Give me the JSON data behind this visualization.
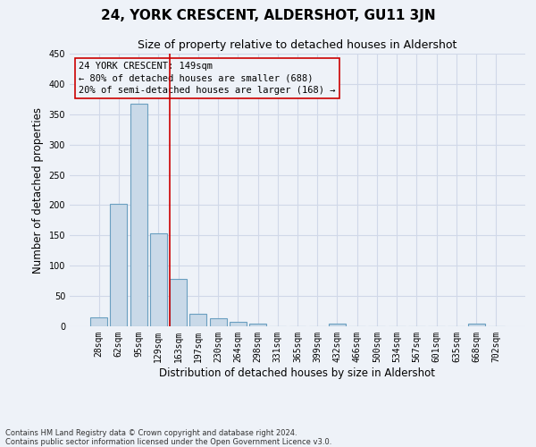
{
  "title": "24, YORK CRESCENT, ALDERSHOT, GU11 3JN",
  "subtitle": "Size of property relative to detached houses in Aldershot",
  "xlabel": "Distribution of detached houses by size in Aldershot",
  "ylabel": "Number of detached properties",
  "bar_labels": [
    "28sqm",
    "62sqm",
    "95sqm",
    "129sqm",
    "163sqm",
    "197sqm",
    "230sqm",
    "264sqm",
    "298sqm",
    "331sqm",
    "365sqm",
    "399sqm",
    "432sqm",
    "466sqm",
    "500sqm",
    "534sqm",
    "567sqm",
    "601sqm",
    "635sqm",
    "668sqm",
    "702sqm"
  ],
  "bar_values": [
    15,
    202,
    368,
    153,
    78,
    20,
    14,
    7,
    5,
    0,
    0,
    0,
    4,
    0,
    0,
    0,
    0,
    0,
    0,
    4,
    0
  ],
  "bar_color": "#c9d9e8",
  "bar_edge_color": "#6a9fc0",
  "bar_edge_width": 0.8,
  "grid_color": "#d0d8e8",
  "background_color": "#eef2f8",
  "ylim": [
    0,
    450
  ],
  "yticks": [
    0,
    50,
    100,
    150,
    200,
    250,
    300,
    350,
    400,
    450
  ],
  "vline_color": "#cc0000",
  "annotation_text": "24 YORK CRESCENT: 149sqm\n← 80% of detached houses are smaller (688)\n20% of semi-detached houses are larger (168) →",
  "annotation_box_color": "#cc0000",
  "footer_line1": "Contains HM Land Registry data © Crown copyright and database right 2024.",
  "footer_line2": "Contains public sector information licensed under the Open Government Licence v3.0.",
  "title_fontsize": 11,
  "subtitle_fontsize": 9,
  "axis_label_fontsize": 8.5,
  "tick_fontsize": 7,
  "annotation_fontsize": 7.5,
  "footer_fontsize": 6
}
